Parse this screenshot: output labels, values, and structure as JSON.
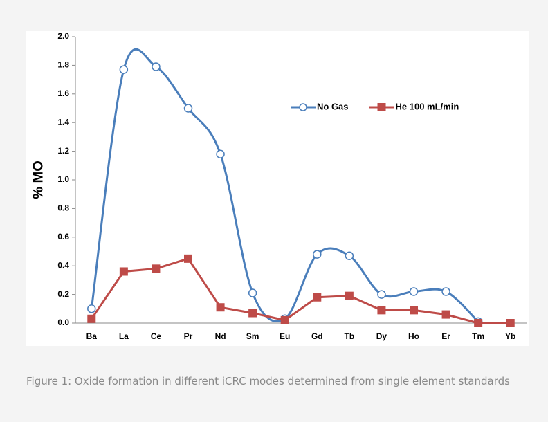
{
  "chart_data": {
    "type": "line",
    "y_label": "% MO",
    "categories": [
      "Ba",
      "La",
      "Ce",
      "Pr",
      "Nd",
      "Sm",
      "Eu",
      "Gd",
      "Tb",
      "Dy",
      "Ho",
      "Er",
      "Tm",
      "Yb"
    ],
    "series": [
      {
        "name": "No Gas",
        "color": "#4a7ebb",
        "values": [
          0.1,
          1.77,
          1.79,
          1.5,
          1.18,
          0.21,
          0.03,
          0.48,
          0.47,
          0.2,
          0.22,
          0.22,
          0.01,
          null
        ]
      },
      {
        "name": "He 100 mL/min",
        "color": "#be4b48",
        "values": [
          0.03,
          0.36,
          0.38,
          0.45,
          0.11,
          0.07,
          0.02,
          0.18,
          0.19,
          0.09,
          0.09,
          0.06,
          0.0,
          0.0
        ]
      }
    ],
    "ylim": [
      0,
      2.0
    ],
    "yticks": [
      {
        "value": 0,
        "label": "0.0"
      },
      {
        "value": 0.2,
        "label": "0.2"
      },
      {
        "value": 0.4,
        "label": "0.4"
      },
      {
        "value": 0.6,
        "label": "0.6"
      },
      {
        "value": 0.8,
        "label": "0.8"
      },
      {
        "value": 1.0,
        "label": "1.0"
      },
      {
        "value": 1.2,
        "label": "1.2"
      },
      {
        "value": 1.4,
        "label": "1.4"
      },
      {
        "value": 1.6,
        "label": "1.6"
      },
      {
        "value": 1.8,
        "label": "1.8"
      },
      {
        "value": 2.0,
        "label": "2.0"
      }
    ],
    "legend": "upper-right"
  },
  "caption": "Figure 1: Oxide formation in different iCRC modes determined from single element standards"
}
